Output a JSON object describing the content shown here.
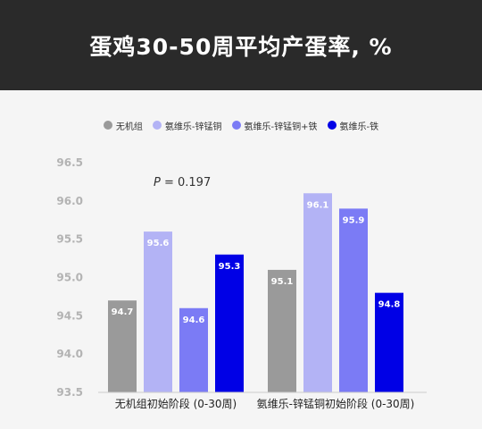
{
  "chart_data": {
    "type": "bar",
    "title": "蛋鸡30-50周平均产蛋率, %",
    "categories": [
      "无机组初始阶段 (0-30周)",
      "氨维乐-锌锰铜初始阶段 (0-30周)"
    ],
    "series": [
      {
        "name": "无机组",
        "color": "#9a9a9a",
        "values": [
          94.7,
          95.1
        ]
      },
      {
        "name": "氨维乐-锌锰铜",
        "color": "#b3b3f5",
        "values": [
          95.6,
          96.1
        ]
      },
      {
        "name": "氨维乐-锌锰铜+铁",
        "color": "#7b7bf5",
        "values": [
          94.6,
          95.9
        ]
      },
      {
        "name": "氨维乐-铁",
        "color": "#0000e6",
        "values": [
          95.3,
          94.8
        ]
      }
    ],
    "ylim": [
      93.5,
      96.5
    ],
    "yticks": [
      "93.5",
      "94.0",
      "94.5",
      "95.0",
      "95.5",
      "96.0",
      "96.5"
    ],
    "annotation": {
      "label": "P",
      "text": " = 0.197"
    },
    "legend_position": "top"
  }
}
